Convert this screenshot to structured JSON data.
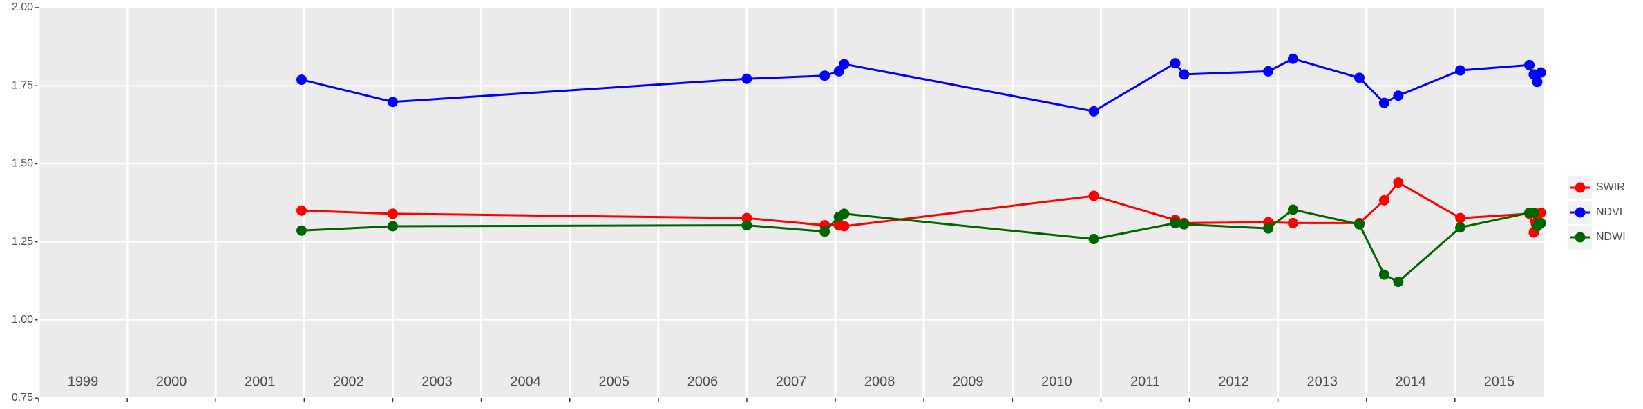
{
  "chart_data": {
    "type": "line",
    "x": [
      2001.97,
      2003.0,
      2007.0,
      2007.88,
      2008.04,
      2008.1,
      2010.92,
      2011.84,
      2011.94,
      2012.89,
      2013.17,
      2013.92,
      2014.2,
      2014.36,
      2015.06,
      2015.84,
      2015.89,
      2015.93,
      2015.97
    ],
    "series": [
      {
        "name": "SWIR",
        "color": "#ff0000",
        "values": [
          1.35,
          1.34,
          1.326,
          1.303,
          1.303,
          1.3,
          1.397,
          1.32,
          1.31,
          1.313,
          1.31,
          1.31,
          1.383,
          1.44,
          1.326,
          1.34,
          1.28,
          1.316,
          1.343
        ]
      },
      {
        "name": "NDVI",
        "color": "#0000ff",
        "values": [
          1.769,
          1.698,
          1.772,
          1.782,
          1.796,
          1.819,
          1.668,
          1.822,
          1.786,
          1.796,
          1.836,
          1.775,
          1.695,
          1.718,
          1.799,
          1.816,
          1.786,
          1.762,
          1.792
        ]
      },
      {
        "name": "NDWI",
        "color": "#006400",
        "values": [
          1.286,
          1.3,
          1.303,
          1.283,
          1.33,
          1.34,
          1.259,
          1.31,
          1.306,
          1.293,
          1.353,
          1.306,
          1.145,
          1.122,
          1.296,
          1.343,
          1.343,
          1.3,
          1.31
        ]
      }
    ],
    "xlim": [
      1999,
      2016
    ],
    "xticks": [
      1999,
      2000,
      2001,
      2002,
      2003,
      2004,
      2005,
      2006,
      2007,
      2008,
      2009,
      2010,
      2011,
      2012,
      2013,
      2014,
      2015
    ],
    "ylim": [
      0.75,
      2.0
    ],
    "yticks": [
      0.75,
      {
        "value": 1.0,
        "label": "1.00"
      },
      1.25,
      {
        "value": 1.5,
        "label": "1.50"
      },
      1.75,
      {
        "value": 2.0,
        "label": "2.00"
      }
    ],
    "grid": true
  }
}
